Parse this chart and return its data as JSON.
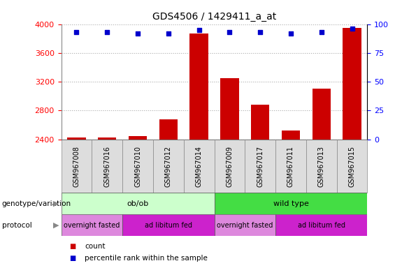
{
  "title": "GDS4506 / 1429411_a_at",
  "samples": [
    "GSM967008",
    "GSM967016",
    "GSM967010",
    "GSM967012",
    "GSM967014",
    "GSM967009",
    "GSM967017",
    "GSM967011",
    "GSM967013",
    "GSM967015"
  ],
  "counts": [
    2430,
    2430,
    2450,
    2680,
    3870,
    3250,
    2880,
    2520,
    3100,
    3950
  ],
  "percentile_ranks": [
    93,
    93,
    92,
    92,
    95,
    93,
    93,
    92,
    93,
    96
  ],
  "ylim_left": [
    2400,
    4000
  ],
  "ylim_right": [
    0,
    100
  ],
  "yticks_left": [
    2400,
    2800,
    3200,
    3600,
    4000
  ],
  "yticks_right": [
    0,
    25,
    50,
    75,
    100
  ],
  "bar_color": "#cc0000",
  "dot_color": "#0000cc",
  "grid_color": "#aaaaaa",
  "genotype_groups": [
    {
      "label": "ob/ob",
      "start": 0,
      "end": 5,
      "color": "#ccffcc"
    },
    {
      "label": "wild type",
      "start": 5,
      "end": 10,
      "color": "#44dd44"
    }
  ],
  "protocol_groups": [
    {
      "label": "overnight fasted",
      "start": 0,
      "end": 2,
      "color": "#dd88dd"
    },
    {
      "label": "ad libitum fed",
      "start": 2,
      "end": 5,
      "color": "#cc22cc"
    },
    {
      "label": "overnight fasted",
      "start": 5,
      "end": 7,
      "color": "#dd88dd"
    },
    {
      "label": "ad libitum fed",
      "start": 7,
      "end": 10,
      "color": "#cc22cc"
    }
  ],
  "left_label_genotype": "genotype/variation",
  "left_label_protocol": "protocol",
  "legend_count_color": "#cc0000",
  "legend_rank_color": "#0000cc",
  "legend_count_label": "count",
  "legend_rank_label": "percentile rank within the sample",
  "xtick_bg_color": "#dddddd",
  "spine_color": "#888888"
}
